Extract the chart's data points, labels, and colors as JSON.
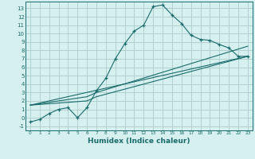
{
  "xlabel": "Humidex (Indice chaleur)",
  "bg_color": "#d6f0f0",
  "grid_color": "#b0d0d0",
  "line_color": "#1a6b6b",
  "xlim": [
    -0.5,
    23.5
  ],
  "ylim": [
    -1.5,
    13.8
  ],
  "xticks": [
    0,
    1,
    2,
    3,
    4,
    5,
    6,
    7,
    8,
    9,
    10,
    11,
    12,
    13,
    14,
    15,
    16,
    17,
    18,
    19,
    20,
    21,
    22,
    23
  ],
  "yticks": [
    -1,
    0,
    1,
    2,
    3,
    4,
    5,
    6,
    7,
    8,
    9,
    10,
    11,
    12,
    13
  ],
  "curve1_x": [
    0,
    1,
    2,
    3,
    4,
    5,
    6,
    7,
    8,
    9,
    10,
    11,
    12,
    13,
    14,
    15,
    16,
    17,
    18,
    19,
    20,
    21,
    22,
    23
  ],
  "curve1_y": [
    -0.5,
    -0.2,
    0.5,
    1.0,
    1.2,
    0.0,
    1.2,
    3.2,
    4.7,
    7.0,
    8.8,
    10.3,
    11.0,
    13.2,
    13.4,
    12.2,
    11.2,
    9.8,
    9.3,
    9.2,
    8.7,
    8.3,
    7.3,
    7.3
  ],
  "line1_x": [
    0,
    6,
    7,
    23
  ],
  "line1_y": [
    1.5,
    2.5,
    3.0,
    8.5
  ],
  "line2_x": [
    0,
    6,
    7,
    23
  ],
  "line2_y": [
    1.5,
    2.0,
    2.5,
    7.3
  ],
  "line3_x": [
    0,
    23
  ],
  "line3_y": [
    1.5,
    7.3
  ]
}
